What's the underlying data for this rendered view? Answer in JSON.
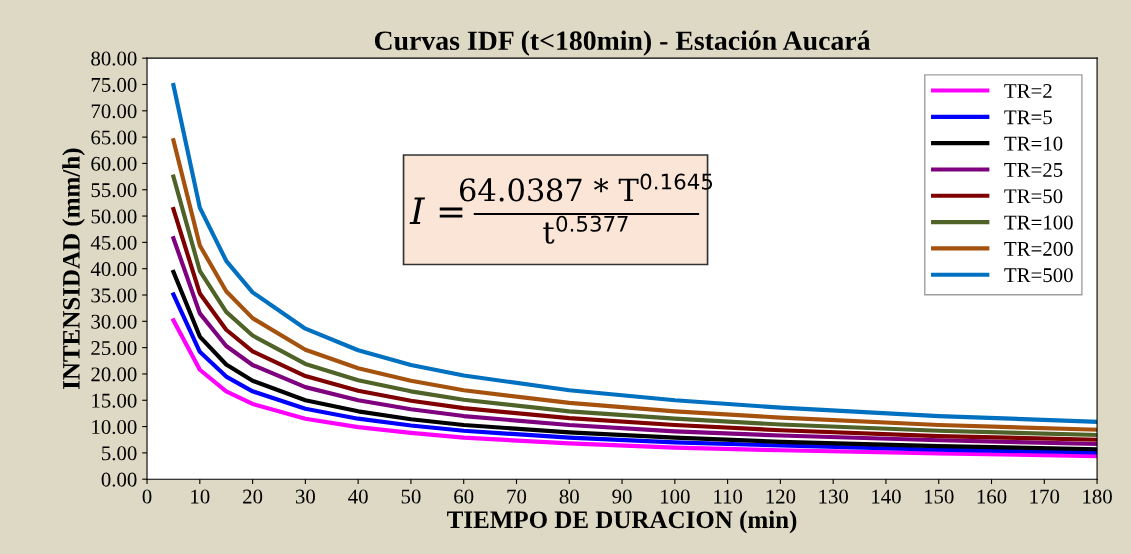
{
  "chart_data": {
    "type": "line",
    "title": "Curvas IDF (t<180min) - Estación Aucará",
    "xlabel": "TIEMPO DE DURACION (min)",
    "ylabel": "INTENSIDAD (mm/h)",
    "x": [
      5,
      10,
      15,
      20,
      30,
      40,
      50,
      60,
      80,
      100,
      120,
      150,
      180
    ],
    "series": [
      {
        "name": "TR=2",
        "color": "#ff00ff",
        "values": [
          30.2,
          20.8,
          16.7,
          14.3,
          11.5,
          9.9,
          8.8,
          7.9,
          6.8,
          6.0,
          5.5,
          4.9,
          4.4
        ]
      },
      {
        "name": "TR=5",
        "color": "#0000ff",
        "values": [
          35.1,
          24.2,
          19.5,
          16.7,
          13.4,
          11.5,
          10.2,
          9.2,
          7.9,
          7.0,
          6.4,
          5.6,
          5.1
        ]
      },
      {
        "name": "TR=10",
        "color": "#000000",
        "values": [
          39.4,
          27.1,
          21.8,
          18.7,
          15.0,
          12.9,
          11.4,
          10.3,
          8.9,
          7.9,
          7.1,
          6.3,
          5.7
        ]
      },
      {
        "name": "TR=25",
        "color": "#7f007f",
        "values": [
          45.8,
          31.5,
          25.3,
          21.7,
          17.5,
          15.0,
          13.3,
          12.0,
          10.3,
          9.1,
          8.3,
          7.4,
          6.7
        ]
      },
      {
        "name": "TR=50",
        "color": "#7f0000",
        "values": [
          51.3,
          35.3,
          28.4,
          24.3,
          19.6,
          16.8,
          14.9,
          13.5,
          11.6,
          10.3,
          9.3,
          8.2,
          7.5
        ]
      },
      {
        "name": "TR=100",
        "color": "#4f6228",
        "values": [
          57.5,
          39.6,
          31.8,
          27.3,
          21.9,
          18.8,
          16.7,
          15.1,
          12.9,
          11.5,
          10.4,
          9.2,
          8.4
        ]
      },
      {
        "name": "TR=200",
        "color": "#a5520f",
        "values": [
          64.4,
          44.4,
          35.7,
          30.6,
          24.6,
          21.1,
          18.7,
          16.9,
          14.5,
          12.9,
          11.7,
          10.3,
          9.4
        ]
      },
      {
        "name": "TR=500",
        "color": "#0070c0",
        "values": [
          74.9,
          51.6,
          41.5,
          35.5,
          28.6,
          24.5,
          21.7,
          19.7,
          16.9,
          15.0,
          13.6,
          12.0,
          10.9
        ]
      }
    ],
    "xlim": [
      0,
      180
    ],
    "xticks": [
      0,
      10,
      20,
      30,
      40,
      50,
      60,
      70,
      80,
      90,
      100,
      110,
      120,
      130,
      140,
      150,
      160,
      170,
      180
    ],
    "ylim": [
      0,
      80
    ],
    "yticks": [
      {
        "value": 0,
        "label": "0.00"
      },
      {
        "value": 5,
        "label": "5.00"
      },
      {
        "value": 10,
        "label": "10.00"
      },
      {
        "value": 15,
        "label": "15.00"
      },
      {
        "value": 20,
        "label": "20.00"
      },
      {
        "value": 25,
        "label": "25.00"
      },
      {
        "value": 30,
        "label": "30.00"
      },
      {
        "value": 35,
        "label": "35.00"
      },
      {
        "value": 40,
        "label": "40.00"
      },
      {
        "value": 45,
        "label": "45.00"
      },
      {
        "value": 50,
        "label": "50.00"
      },
      {
        "value": 55,
        "label": "55.00"
      },
      {
        "value": 60,
        "label": "60.00"
      },
      {
        "value": 65,
        "label": "65.00"
      },
      {
        "value": 70,
        "label": "70.00"
      },
      {
        "value": 75,
        "label": "75.00"
      },
      {
        "value": 80,
        "label": "80.00"
      }
    ],
    "annotations": [
      "I =",
      "64.0387 * T$^{0.1645}$",
      "t$^{0.5377}$"
    ],
    "legend": "top right",
    "grid": false,
    "marker": "none",
    "line_style": "solid"
  }
}
